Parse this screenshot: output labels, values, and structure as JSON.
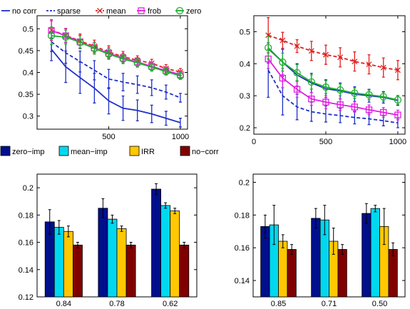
{
  "chart_data": [
    {
      "type": "line",
      "x": [
        100,
        200,
        300,
        400,
        500,
        600,
        700,
        800,
        900,
        1000
      ],
      "xlim": [
        0,
        1050
      ],
      "ylim": [
        0.27,
        0.53
      ],
      "xticks": [
        "500",
        "1000"
      ],
      "xtick_values": [
        500,
        1000
      ],
      "yticks": [
        "0.3",
        "0.35",
        "0.4",
        "0.45",
        "0.5"
      ],
      "ytick_values": [
        0.3,
        0.35,
        0.4,
        0.45,
        0.5
      ],
      "legend": {
        "placement": "top",
        "entries": [
          "no corr",
          "sparse",
          "mean",
          "frob",
          "zero"
        ]
      },
      "series": [
        {
          "name": "no corr",
          "color": "#1f2fc8",
          "style": "solid",
          "marker": "none",
          "values": [
            0.453,
            0.413,
            0.388,
            0.364,
            0.335,
            0.318,
            0.313,
            0.305,
            0.295,
            0.285
          ],
          "err": [
            0.026,
            0.036,
            0.036,
            0.034,
            0.03,
            0.028,
            0.024,
            0.02,
            0.016,
            0.01
          ]
        },
        {
          "name": "sparse",
          "color": "#1f2fc8",
          "style": "dashed",
          "marker": "none",
          "values": [
            0.47,
            0.445,
            0.425,
            0.405,
            0.385,
            0.378,
            0.372,
            0.365,
            0.355,
            0.342
          ],
          "err": [
            0.022,
            0.024,
            0.024,
            0.022,
            0.022,
            0.02,
            0.02,
            0.018,
            0.016,
            0.01
          ]
        },
        {
          "name": "mean",
          "color": "#e02020",
          "style": "dashed",
          "marker": "x",
          "values": [
            0.497,
            0.485,
            0.472,
            0.46,
            0.447,
            0.436,
            0.428,
            0.421,
            0.409,
            0.401
          ],
          "err": [
            0.024,
            0.016,
            0.016,
            0.014,
            0.014,
            0.012,
            0.01,
            0.009,
            0.009,
            0.008
          ]
        },
        {
          "name": "frob",
          "color": "#e020e0",
          "style": "solid",
          "marker": "square",
          "values": [
            0.496,
            0.484,
            0.47,
            0.456,
            0.444,
            0.433,
            0.424,
            0.414,
            0.404,
            0.395
          ],
          "err": [
            0.022,
            0.016,
            0.015,
            0.013,
            0.013,
            0.011,
            0.01,
            0.009,
            0.008,
            0.008
          ]
        },
        {
          "name": "zero",
          "color": "#1fb02f",
          "style": "solid",
          "marker": "circle",
          "values": [
            0.484,
            0.481,
            0.469,
            0.455,
            0.442,
            0.431,
            0.422,
            0.412,
            0.402,
            0.392
          ],
          "err": [
            0.02,
            0.016,
            0.015,
            0.013,
            0.012,
            0.011,
            0.01,
            0.009,
            0.008,
            0.008
          ]
        }
      ]
    },
    {
      "type": "line",
      "x": [
        100,
        200,
        300,
        400,
        500,
        600,
        700,
        800,
        900,
        1000
      ],
      "xlim": [
        0,
        1050
      ],
      "ylim": [
        0.18,
        0.55
      ],
      "xticks": [
        "0",
        "500",
        "1000"
      ],
      "xtick_values": [
        0,
        500,
        1000
      ],
      "yticks": [
        "0.2",
        "0.3",
        "0.4",
        "0.5"
      ],
      "ytick_values": [
        0.2,
        0.3,
        0.4,
        0.5
      ],
      "series": [
        {
          "name": "no corr",
          "color": "#1f2fc8",
          "style": "solid",
          "marker": "none",
          "values": [
            0.447,
            0.405,
            0.365,
            0.34,
            0.322,
            0.315,
            0.305,
            0.3,
            0.295,
            0.285
          ],
          "err": [
            0.045,
            0.04,
            0.035,
            0.03,
            0.028,
            0.025,
            0.023,
            0.02,
            0.018,
            0.015
          ]
        },
        {
          "name": "sparse",
          "color": "#1f2fc8",
          "style": "dashed",
          "marker": "none",
          "values": [
            0.38,
            0.3,
            0.265,
            0.25,
            0.243,
            0.238,
            0.232,
            0.228,
            0.222,
            0.215
          ],
          "err": [
            0.085,
            0.06,
            0.04,
            0.03,
            0.025,
            0.022,
            0.02,
            0.018,
            0.016,
            0.015
          ]
        },
        {
          "name": "mean",
          "color": "#e02020",
          "style": "dashed",
          "marker": "x",
          "values": [
            0.489,
            0.473,
            0.455,
            0.44,
            0.428,
            0.42,
            0.407,
            0.398,
            0.388,
            0.38
          ],
          "err": [
            0.055,
            0.025,
            0.02,
            0.03,
            0.03,
            0.03,
            0.03,
            0.03,
            0.03,
            0.03
          ]
        },
        {
          "name": "frob",
          "color": "#e020e0",
          "style": "solid",
          "marker": "square",
          "values": [
            0.415,
            0.355,
            0.32,
            0.29,
            0.28,
            0.272,
            0.265,
            0.256,
            0.248,
            0.24
          ],
          "err": [
            0.03,
            0.03,
            0.025,
            0.02,
            0.02,
            0.018,
            0.016,
            0.015,
            0.015,
            0.015
          ]
        },
        {
          "name": "zero",
          "color": "#1fb02f",
          "style": "solid",
          "marker": "circle",
          "values": [
            0.45,
            0.405,
            0.372,
            0.343,
            0.327,
            0.318,
            0.308,
            0.303,
            0.297,
            0.287
          ],
          "err": [
            0.035,
            0.028,
            0.025,
            0.022,
            0.02,
            0.018,
            0.016,
            0.015,
            0.014,
            0.014
          ]
        }
      ]
    },
    {
      "type": "bar",
      "categories": [
        "0.84",
        "0.78",
        "0.62"
      ],
      "ylim": [
        0.12,
        0.21
      ],
      "yticks": [
        "0.12",
        "0.14",
        "0.16",
        "0.18",
        "0.2"
      ],
      "ytick_values": [
        0.12,
        0.14,
        0.16,
        0.18,
        0.2
      ],
      "legend": {
        "placement": "top",
        "entries": [
          "zero−imp",
          "mean−imp",
          "IRR",
          "no−corr"
        ]
      },
      "series": [
        {
          "name": "zero−imp",
          "color": "#000f8c",
          "values": [
            0.175,
            0.185,
            0.199
          ],
          "err": [
            0.009,
            0.007,
            0.004
          ]
        },
        {
          "name": "mean−imp",
          "color": "#00d8f0",
          "values": [
            0.171,
            0.177,
            0.187
          ],
          "err": [
            0.005,
            0.003,
            0.002
          ]
        },
        {
          "name": "IRR",
          "color": "#ffc800",
          "values": [
            0.168,
            0.17,
            0.183
          ],
          "err": [
            0.004,
            0.002,
            0.002
          ]
        },
        {
          "name": "no−corr",
          "color": "#800000",
          "values": [
            0.158,
            0.158,
            0.158
          ],
          "err": [
            0.002,
            0.002,
            0.002
          ]
        }
      ]
    },
    {
      "type": "bar",
      "categories": [
        "0.85",
        "0.71",
        "0.50"
      ],
      "ylim": [
        0.13,
        0.205
      ],
      "yticks": [
        "0.14",
        "0.16",
        "0.18",
        "0.2"
      ],
      "ytick_values": [
        0.14,
        0.16,
        0.18,
        0.2
      ],
      "series": [
        {
          "name": "zero−imp",
          "color": "#000f8c",
          "values": [
            0.173,
            0.178,
            0.181
          ],
          "err": [
            0.007,
            0.006,
            0.006
          ]
        },
        {
          "name": "mean−imp",
          "color": "#00d8f0",
          "values": [
            0.174,
            0.177,
            0.184
          ],
          "err": [
            0.012,
            0.009,
            0.002
          ]
        },
        {
          "name": "IRR",
          "color": "#ffc800",
          "values": [
            0.164,
            0.164,
            0.173
          ],
          "err": [
            0.004,
            0.008,
            0.011
          ]
        },
        {
          "name": "no−corr",
          "color": "#800000",
          "values": [
            0.159,
            0.159,
            0.159
          ],
          "err": [
            0.003,
            0.003,
            0.004
          ]
        }
      ]
    }
  ]
}
